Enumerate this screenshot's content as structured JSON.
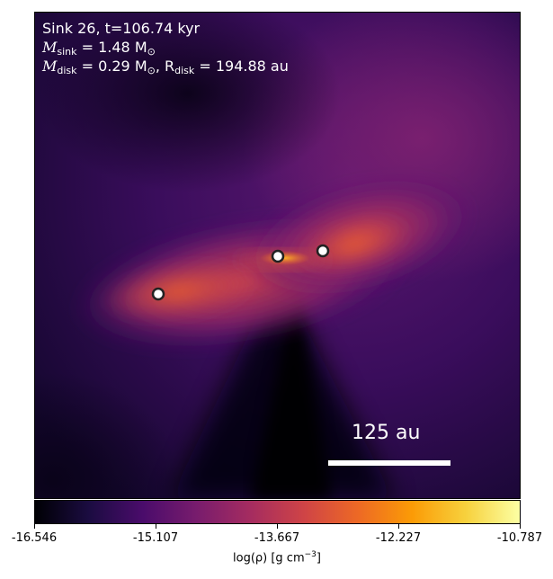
{
  "panel": {
    "line1": "Sink 26, t=106.74 kyr",
    "line2_prefix": "M",
    "line2_sub": "sink",
    "line2_value": " = 1.48 M",
    "line2_unit_sub": "⊙",
    "line3_prefix": "M",
    "line3_sub": "disk",
    "line3_value": " = 0.29 M",
    "line3_unit_sub": "⊙",
    "line3_sep": ", R",
    "line3_r_sub": "disk",
    "line3_r_value": " = 194.88 au"
  },
  "scale_bar": {
    "label": "125 au"
  },
  "colorbar": {
    "ticks": [
      "-16.546",
      "-15.107",
      "-13.667",
      "-12.227",
      "-10.787"
    ],
    "label_prefix": "log(ρ) [g cm",
    "label_exp": "−3",
    "label_suffix": "]",
    "colormap": [
      "#000004",
      "#1b0c41",
      "#4a0c6b",
      "#781c6d",
      "#a52c60",
      "#cf4446",
      "#ed6925",
      "#fb9b06",
      "#f7d13d",
      "#fcffa4"
    ]
  },
  "sinks": [
    {
      "name": "sink-left"
    },
    {
      "name": "sink-center"
    },
    {
      "name": "sink-right"
    }
  ]
}
